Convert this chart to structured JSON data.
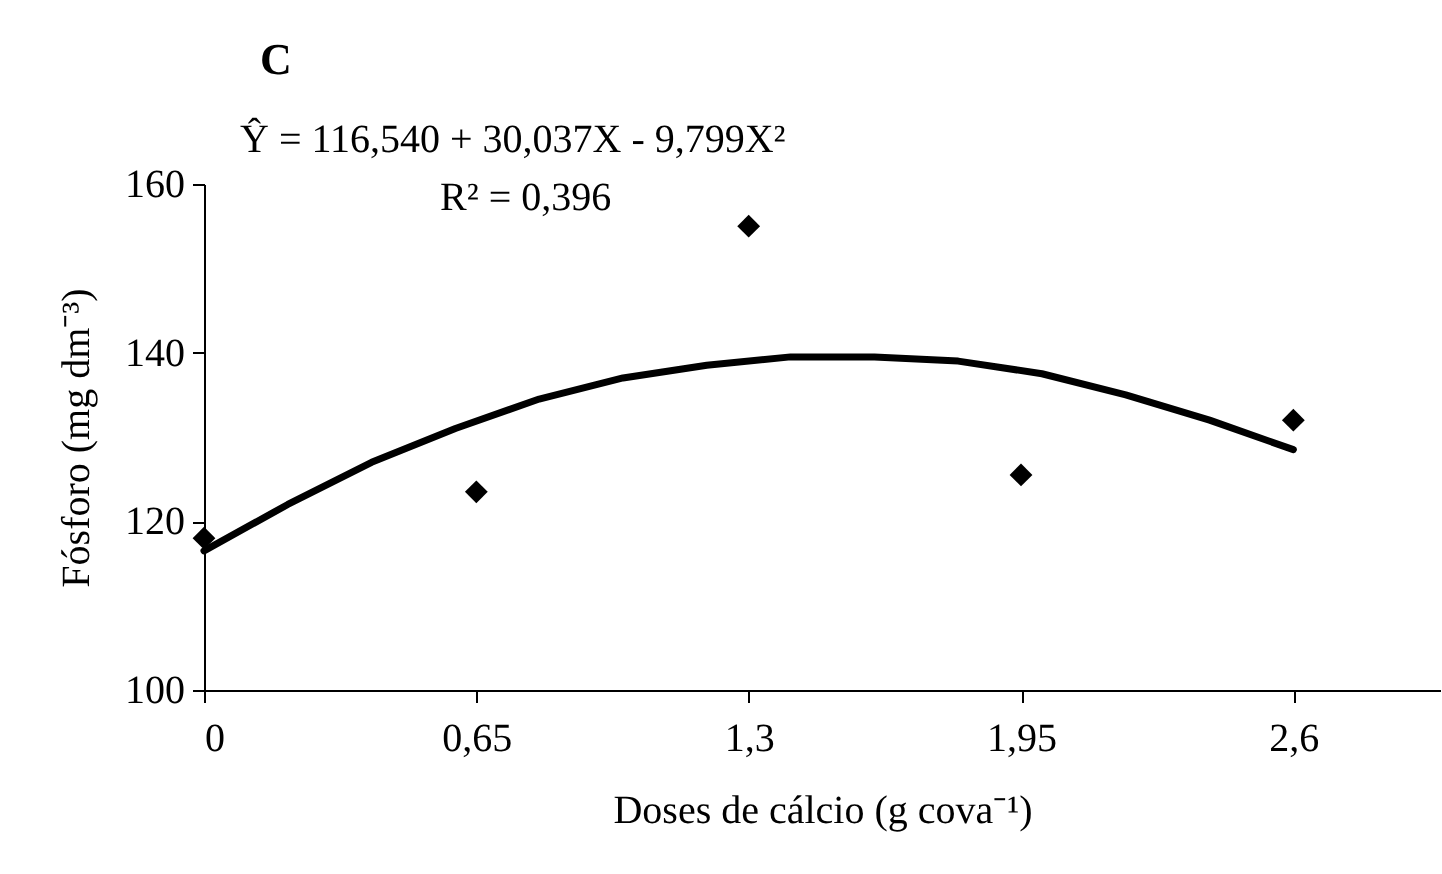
{
  "chart_data": {
    "type": "scatter",
    "title": "C",
    "xlabel": "Doses de cálcio (g cova⁻¹)",
    "ylabel": "Fósforo (mg dm⁻³)",
    "annotations": [
      "Ŷ = 116,540  + 30,037X - 9,799X²",
      "R² = 0,396"
    ],
    "xlim": [
      0,
      2.95
    ],
    "xticks": [
      0,
      {
        "value": 0.65,
        "label": "0,65"
      },
      {
        "value": 1.3,
        "label": "1,3"
      },
      {
        "value": 1.95,
        "label": "1,95"
      },
      {
        "value": 2.6,
        "label": "2,6"
      }
    ],
    "ylim": [
      100,
      160
    ],
    "yticks": [
      100,
      120,
      140,
      160
    ],
    "series": [
      {
        "type": "line",
        "color": "#000000",
        "marker": "none",
        "x": [
          0,
          0.2,
          0.4,
          0.6,
          0.8,
          1.0,
          1.2,
          1.4,
          1.6,
          1.8,
          2.0,
          2.2,
          2.4,
          2.6
        ],
        "values": [
          116.5,
          122,
          127,
          131,
          134.5,
          137,
          138.5,
          139.5,
          139.5,
          139,
          137.5,
          135,
          132,
          128.5
        ]
      },
      {
        "type": "scatter",
        "color": "#000000",
        "marker": "diamond",
        "x": [
          0,
          0.65,
          1.3,
          1.95,
          2.6
        ],
        "values": [
          118,
          123.5,
          155,
          125.5,
          132
        ]
      }
    ]
  }
}
